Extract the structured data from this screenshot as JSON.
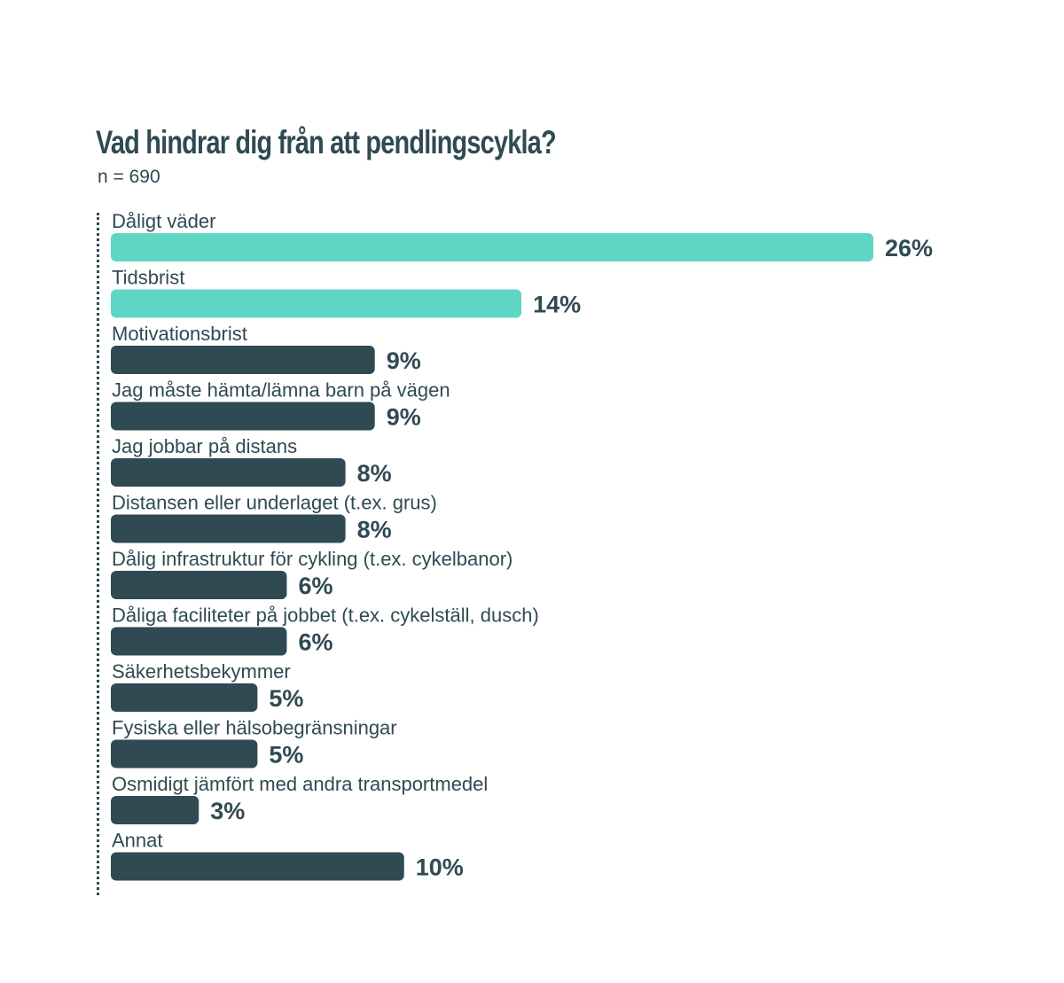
{
  "chart_data": {
    "type": "bar",
    "orientation": "horizontal",
    "title": "Vad hindrar dig från att pendlingscykla?",
    "subtitle": "n = 690",
    "unit": "%",
    "xlim": [
      0,
      26
    ],
    "grid": false,
    "colors": {
      "highlight": "#5fd6c4",
      "default": "#2f4a52",
      "text": "#2f4a52"
    },
    "categories": [
      "Dåligt väder",
      "Tidsbrist",
      "Motivationsbrist",
      "Jag måste hämta/lämna barn på vägen",
      "Jag jobbar på distans",
      "Distansen eller underlaget (t.ex. grus)",
      "Dålig infrastruktur för cykling (t.ex. cykelbanor)",
      "Dåliga faciliteter på jobbet (t.ex. cykelställ, dusch)",
      "Säkerhetsbekymmer",
      "Fysiska eller hälsobegränsningar",
      "Osmidigt jämfört med andra transportmedel",
      "Annat"
    ],
    "values": [
      26,
      14,
      9,
      9,
      8,
      8,
      6,
      6,
      5,
      5,
      3,
      10
    ],
    "value_labels": [
      "26%",
      "14%",
      "9%",
      "9%",
      "8%",
      "8%",
      "6%",
      "6%",
      "5%",
      "5%",
      "3%",
      "10%"
    ],
    "highlighted": [
      true,
      true,
      false,
      false,
      false,
      false,
      false,
      false,
      false,
      false,
      false,
      false
    ]
  }
}
